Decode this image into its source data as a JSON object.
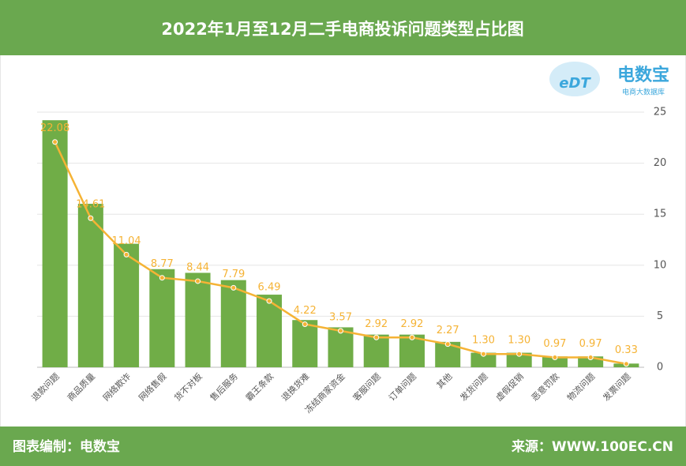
{
  "header": {
    "title": "2022年1月至12月二手电商投诉问题类型占比图"
  },
  "logo": {
    "mark": "eDT",
    "name": "电数宝",
    "tagline": "电商大数据库"
  },
  "chart_data": {
    "type": "bar-line",
    "categories": [
      "退款问题",
      "商品质量",
      "网络欺诈",
      "网络售假",
      "货不对板",
      "售后服务",
      "霸王条款",
      "退换货难",
      "冻结商家资金",
      "客服问题",
      "订单问题",
      "其他",
      "发货问题",
      "虚假促销",
      "恶意罚款",
      "物流问题",
      "发票问题"
    ],
    "series": [
      {
        "type": "bar",
        "color": "#70ad47",
        "axis": "y2",
        "values": [
          22.08,
          14.61,
          11.04,
          8.77,
          8.44,
          7.79,
          6.49,
          4.22,
          3.57,
          2.92,
          2.92,
          2.27,
          1.3,
          1.3,
          0.97,
          0.97,
          0.33
        ]
      },
      {
        "type": "line",
        "color": "#f5b335",
        "values": [
          22.08,
          14.61,
          11.04,
          8.77,
          8.44,
          7.79,
          6.49,
          4.22,
          3.57,
          2.92,
          2.92,
          2.27,
          1.3,
          1.3,
          0.97,
          0.97,
          0.33
        ],
        "value_labels": [
          "22.08",
          "14.61",
          "11.04",
          "8.77",
          "8.44",
          "7.79",
          "6.49",
          "4.22",
          "3.57",
          "2.92",
          "2.92",
          "2.27",
          "1.30",
          "1.30",
          "0.97",
          "0.97",
          "0.33"
        ]
      }
    ],
    "ylim": [
      0,
      25
    ],
    "yticks": [
      0,
      5,
      10,
      15,
      20,
      25
    ],
    "y2lim": [
      0,
      22.8
    ],
    "grid": true
  },
  "footer": {
    "left": "图表编制：电数宝",
    "right": "来源：WWW.100EC.CN"
  }
}
